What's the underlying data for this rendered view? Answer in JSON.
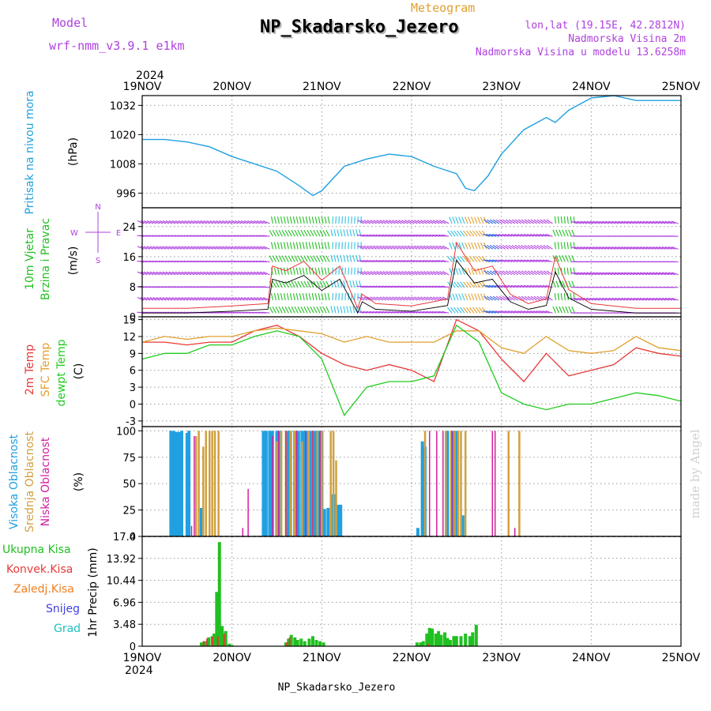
{
  "header": {
    "model_label": "Model",
    "model_name": "wrf-nmm_v3.9.1  e1km",
    "meteogram_label": "Meteogram",
    "station_title": "NP_Skadarsko_Jezero",
    "lonlat": "lon,lat (19.15E, 42.2812N)",
    "altitude": "Nadmorska Visina 2m",
    "model_altitude": "Nadmorska Visina u modelu 13.6258m",
    "footer_station": "NP_Skadarsko_Jezero",
    "watermark": "made by Angel"
  },
  "colors": {
    "purple": "#b040e0",
    "pressure": "#20a0e0",
    "wind_green": "#20c020",
    "temp_red": "#e83838",
    "sfc_orange": "#e0a030",
    "dewpt_green": "#20cc20",
    "high_cloud": "#20a0e0",
    "mid_cloud": "#d0a040",
    "low_cloud": "#d020a0",
    "total_precip": "#20c020",
    "conv_precip": "#e83838",
    "freezing": "#f08020",
    "snow": "#4040e0",
    "hail": "#20c0c0"
  },
  "time_axis": {
    "year": "2024",
    "labels": [
      "19NOV",
      "20NOV",
      "21NOV",
      "22NOV",
      "23NOV",
      "24NOV",
      "25NOV"
    ]
  },
  "chart_data": [
    {
      "type": "line",
      "name": "pressure",
      "label": "Pritisak na nivou mora",
      "unit": "(hPa)",
      "ylim": [
        990,
        1036
      ],
      "yticks": [
        996,
        1008,
        1020,
        1032
      ],
      "x_days": [
        0,
        0.25,
        0.5,
        0.75,
        1.0,
        1.25,
        1.5,
        1.75,
        1.9,
        2.0,
        2.25,
        2.5,
        2.75,
        3.0,
        3.25,
        3.5,
        3.6,
        3.7,
        3.85,
        4.0,
        4.25,
        4.5,
        4.6,
        4.75,
        5.0,
        5.25,
        5.5,
        5.75,
        6.0
      ],
      "values": [
        1018,
        1018,
        1017,
        1015,
        1011,
        1008,
        1005,
        999,
        995,
        997,
        1007,
        1010,
        1012,
        1011,
        1007,
        1004,
        998,
        997,
        1003,
        1012,
        1022,
        1027,
        1025,
        1030,
        1035,
        1036,
        1034,
        1034,
        1034
      ]
    },
    {
      "type": "line",
      "name": "wind",
      "label": "10m Vjetar Brzina i Pravac",
      "unit": "(m/s)",
      "compass": [
        "N",
        "E",
        "S",
        "W"
      ],
      "ylim": [
        0,
        29
      ],
      "yticks": [
        0,
        8,
        16,
        24
      ],
      "x_days": [
        0,
        0.5,
        1.0,
        1.4,
        1.45,
        1.6,
        1.8,
        2.0,
        2.2,
        2.4,
        2.45,
        2.6,
        3.0,
        3.4,
        3.5,
        3.7,
        3.9,
        4.1,
        4.3,
        4.5,
        4.6,
        4.75,
        5.0,
        5.5,
        6.0
      ],
      "values": [
        1,
        1,
        1.5,
        2,
        10,
        9,
        11,
        7,
        10,
        1,
        4,
        2,
        1.5,
        3,
        15,
        9,
        10,
        4,
        2,
        3,
        12,
        5,
        2,
        1,
        1
      ]
    },
    {
      "type": "line",
      "name": "temperature",
      "series_labels": [
        "2m Temp",
        "SFC Temp",
        "dewpt Temp"
      ],
      "unit": "(C)",
      "ylim": [
        -4,
        15.5
      ],
      "yticks": [
        -3,
        0,
        3,
        6,
        9,
        12,
        15
      ],
      "x_days": [
        0,
        0.25,
        0.5,
        0.75,
        1.0,
        1.25,
        1.5,
        1.75,
        2.0,
        2.25,
        2.5,
        2.75,
        3.0,
        3.25,
        3.5,
        3.75,
        4.0,
        4.25,
        4.5,
        4.75,
        5.0,
        5.25,
        5.5,
        5.75,
        6.0
      ],
      "series": [
        {
          "name": "2m Temp",
          "values": [
            11,
            11,
            10.5,
            11,
            11,
            13,
            14,
            12,
            9,
            7,
            6,
            7,
            6,
            4,
            15,
            13,
            8,
            4,
            9,
            5,
            6,
            7,
            10,
            9,
            8.5
          ]
        },
        {
          "name": "SFC Temp",
          "values": [
            11,
            12,
            11.5,
            12,
            12,
            13,
            13.5,
            13,
            12.5,
            11,
            12,
            11,
            11,
            11,
            13,
            13,
            10,
            9,
            12,
            9.5,
            9,
            9.5,
            12,
            10,
            9.5
          ]
        },
        {
          "name": "dewpt Temp",
          "values": [
            8,
            9,
            9,
            10.5,
            10.5,
            12,
            13,
            12,
            8,
            -2,
            3,
            4,
            4,
            5,
            14,
            11,
            2,
            0,
            -1,
            0,
            0,
            1,
            2,
            1.5,
            0.5
          ]
        }
      ]
    },
    {
      "type": "bar",
      "name": "cloud",
      "series_labels": [
        "Visoka Oblacnost",
        "Srednja Oblacnost",
        "Niska Oblacnost"
      ],
      "unit": "(%)",
      "ylim": [
        0,
        104
      ],
      "yticks": [
        0,
        25,
        50,
        75,
        100
      ],
      "series": [
        {
          "name": "Visoka Oblacnost",
          "x_days": [
            0.32,
            0.35,
            0.38,
            0.41,
            0.44,
            0.5,
            0.52,
            0.66,
            1.35,
            1.38,
            1.42,
            1.45,
            1.5,
            1.52,
            1.62,
            1.65,
            1.7,
            1.74,
            1.78,
            1.81,
            1.84,
            1.88,
            1.92,
            1.95,
            1.98,
            2.0,
            2.03,
            2.07,
            2.11,
            2.14,
            2.18,
            2.21,
            3.07,
            3.12,
            3.15,
            3.4,
            3.46,
            3.5,
            3.57
          ],
          "values": [
            100,
            100,
            99,
            99,
            100,
            98,
            100,
            27,
            100,
            100,
            100,
            100,
            100,
            100,
            100,
            100,
            100,
            100,
            100,
            100,
            100,
            100,
            100,
            100,
            100,
            100,
            26,
            27,
            40,
            40,
            30,
            30,
            8,
            90,
            85,
            100,
            100,
            100,
            20
          ]
        },
        {
          "name": "Srednja Oblacnost",
          "x_days": [
            0.6,
            0.63,
            0.68,
            0.71,
            0.75,
            0.78,
            0.81,
            0.85,
            1.5,
            1.55,
            1.6,
            1.65,
            1.7,
            1.78,
            1.85,
            1.9,
            1.95,
            2.0,
            2.1,
            2.13,
            2.16,
            3.15,
            3.38,
            3.44,
            3.48,
            3.52,
            3.55,
            3.6,
            4.08,
            4.2
          ],
          "values": [
            95,
            100,
            85,
            100,
            100,
            100,
            100,
            100,
            90,
            100,
            100,
            100,
            100,
            90,
            100,
            100,
            100,
            100,
            100,
            100,
            72,
            100,
            100,
            100,
            100,
            100,
            100,
            100,
            100,
            100
          ]
        },
        {
          "name": "Niska Oblacnost",
          "x_days": [
            0.55,
            0.58,
            1.12,
            1.18,
            1.45,
            1.52,
            1.6,
            1.72,
            1.82,
            1.9,
            1.98,
            3.2,
            3.28,
            3.35,
            3.45,
            3.9,
            3.93,
            4.15
          ],
          "values": [
            10,
            95,
            8,
            45,
            95,
            100,
            100,
            100,
            100,
            100,
            100,
            100,
            100,
            100,
            100,
            100,
            100,
            8
          ]
        }
      ]
    },
    {
      "type": "bar",
      "name": "precip",
      "series_labels": [
        "Ukupna Kisa",
        "Konvek.Kisa",
        "Zaledj.Kisa",
        "Snijeg",
        "Grad"
      ],
      "unit": "1hr Precip (mm)",
      "ylim": [
        0,
        17.4
      ],
      "yticks": [
        0,
        3.48,
        6.96,
        10.44,
        13.92,
        17.4
      ],
      "ytick_labels": [
        "0",
        "3.48",
        "6.96",
        "10.44",
        "13.92",
        "17.4"
      ],
      "series": [
        {
          "name": "Ukupna Kisa",
          "x_days": [
            0.66,
            0.7,
            0.74,
            0.78,
            0.8,
            0.83,
            0.86,
            0.89,
            0.93,
            0.97,
            1.0,
            1.6,
            1.63,
            1.66,
            1.7,
            1.73,
            1.77,
            1.81,
            1.86,
            1.9,
            1.94,
            1.98,
            2.02,
            3.06,
            3.1,
            3.13,
            3.17,
            3.2,
            3.23,
            3.27,
            3.3,
            3.33,
            3.37,
            3.4,
            3.43,
            3.47,
            3.5,
            3.55,
            3.6,
            3.65,
            3.68,
            3.72
          ],
          "values": [
            0.6,
            0.8,
            1.4,
            1.6,
            2.0,
            8.6,
            16.5,
            3.2,
            2.4,
            0.4,
            0.2,
            0.6,
            1.2,
            1.8,
            1.4,
            1.0,
            1.2,
            0.8,
            1.2,
            1.6,
            1.0,
            0.8,
            0.6,
            0.6,
            0.6,
            0.8,
            2.0,
            2.9,
            2.8,
            2.0,
            2.4,
            1.8,
            2.2,
            1.3,
            1.0,
            1.6,
            1.6,
            1.6,
            2.0,
            1.6,
            2.2,
            3.4
          ]
        },
        {
          "name": "Konvek.Kisa",
          "x_days": [
            0.7,
            0.74,
            0.8,
            0.86,
            0.93,
            1.63,
            1.66,
            3.2
          ],
          "values": [
            0.8,
            1.2,
            1.5,
            1.6,
            2.0,
            0.6,
            1.4,
            0.4
          ]
        }
      ]
    }
  ]
}
